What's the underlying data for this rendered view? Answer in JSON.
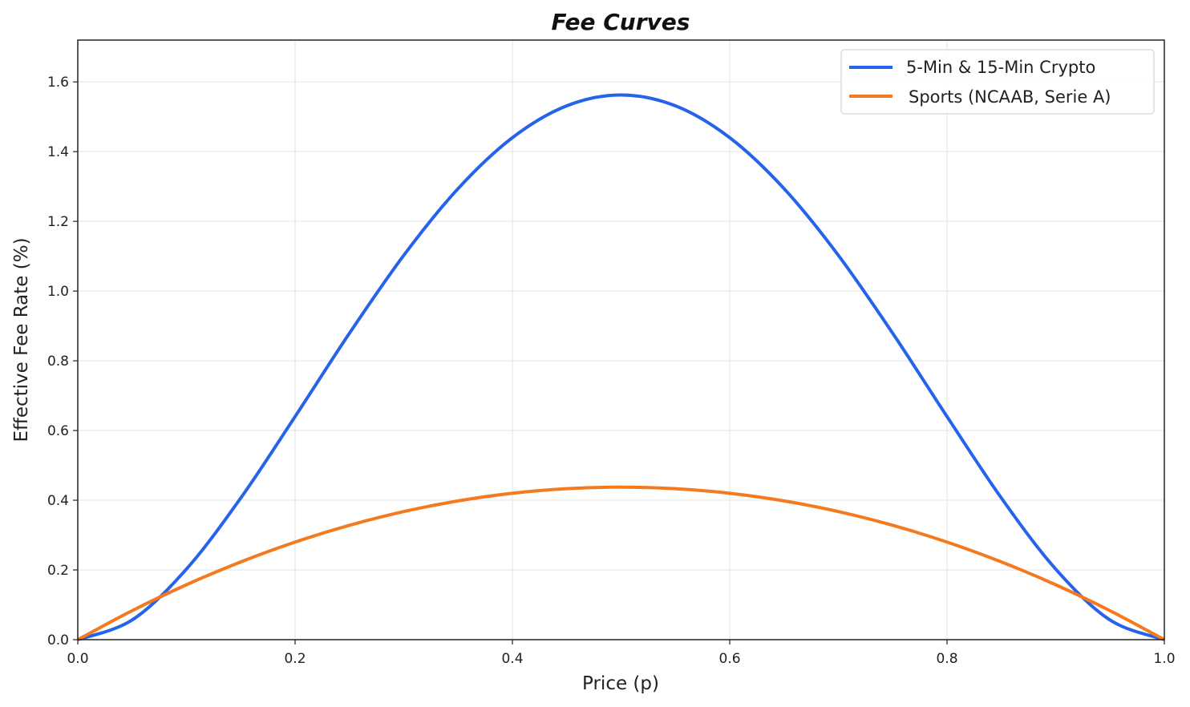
{
  "chart_data": {
    "type": "line",
    "title": "Fee Curves",
    "xlabel": "Price (p)",
    "ylabel": "Effective Fee Rate (%)",
    "xlim": [
      0,
      1
    ],
    "ylim": [
      0,
      1.72
    ],
    "xticks": [
      0,
      0.2,
      0.4,
      0.6,
      0.8,
      1.0
    ],
    "xtick_labels": [
      "0.0",
      "0.2",
      "0.4",
      "0.6",
      "0.8",
      "1.0"
    ],
    "yticks": [
      0,
      0.2,
      0.4,
      0.6,
      0.8,
      1.0,
      1.2,
      1.4,
      1.6
    ],
    "ytick_labels": [
      "0.0",
      "0.2",
      "0.4",
      "0.6",
      "0.8",
      "1.0",
      "1.2",
      "1.4",
      "1.6"
    ],
    "grid": true,
    "legend_position": "top-right",
    "x": [
      0,
      0.05,
      0.1,
      0.15,
      0.2,
      0.25,
      0.3,
      0.35,
      0.4,
      0.45,
      0.5,
      0.55,
      0.6,
      0.65,
      0.7,
      0.75,
      0.8,
      0.85,
      0.9,
      0.95,
      1.0
    ],
    "series": [
      {
        "name": "5-Min & 15-Min Crypto",
        "color": "#2563eb",
        "values": [
          0,
          0.0564,
          0.2025,
          0.4064,
          0.64,
          0.8789,
          1.1025,
          1.2939,
          1.44,
          1.5314,
          1.5625,
          1.5314,
          1.44,
          1.2939,
          1.1025,
          0.8789,
          0.64,
          0.4064,
          0.2025,
          0.0564,
          0
        ]
      },
      {
        "name": "Sports (NCAAB, Serie A)",
        "color": "#f47a20",
        "values": [
          0,
          0.0831,
          0.1575,
          0.2231,
          0.28,
          0.3281,
          0.3675,
          0.3981,
          0.42,
          0.4331,
          0.4375,
          0.4331,
          0.42,
          0.3981,
          0.3675,
          0.3281,
          0.28,
          0.2231,
          0.1575,
          0.0831,
          0
        ]
      }
    ]
  }
}
